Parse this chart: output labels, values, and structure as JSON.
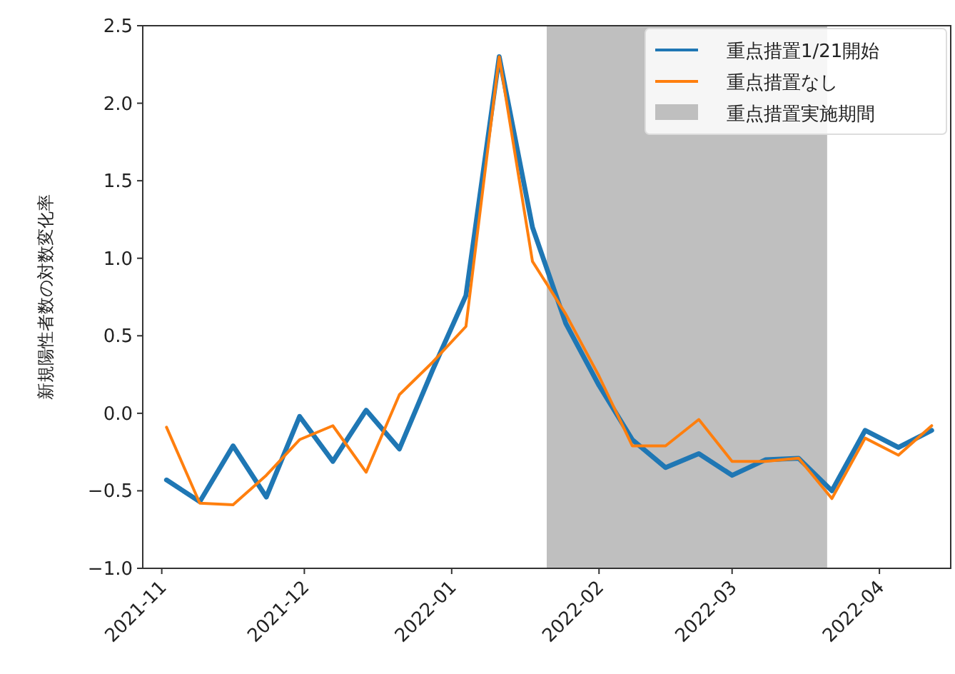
{
  "chart_data": {
    "type": "line",
    "ylabel": "新規陽性者数の対数変化率",
    "x": [
      "2021-11-02",
      "2021-11-09",
      "2021-11-16",
      "2021-11-23",
      "2021-11-30",
      "2021-12-07",
      "2021-12-14",
      "2021-12-21",
      "2021-12-28",
      "2022-01-04",
      "2022-01-11",
      "2022-01-18",
      "2022-01-25",
      "2022-02-01",
      "2022-02-08",
      "2022-02-15",
      "2022-02-22",
      "2022-03-01",
      "2022-03-08",
      "2022-03-15",
      "2022-03-22",
      "2022-03-29",
      "2022-04-05",
      "2022-04-12"
    ],
    "series": [
      {
        "name": "重点措置1/21開始",
        "color": "#1f77b4",
        "values": [
          -0.43,
          -0.57,
          -0.21,
          -0.54,
          -0.02,
          -0.31,
          0.02,
          -0.23,
          0.28,
          0.76,
          2.3,
          1.2,
          0.58,
          0.18,
          -0.17,
          -0.35,
          -0.26,
          -0.4,
          -0.3,
          -0.29,
          -0.5,
          -0.11,
          -0.22,
          -0.11
        ]
      },
      {
        "name": "重点措置なし",
        "color": "#ff7f0e",
        "values": [
          -0.09,
          -0.58,
          -0.59,
          -0.4,
          -0.17,
          -0.08,
          -0.38,
          0.12,
          0.33,
          0.56,
          2.3,
          0.98,
          0.64,
          0.24,
          -0.21,
          -0.21,
          -0.04,
          -0.31,
          -0.31,
          -0.29,
          -0.55,
          -0.16,
          -0.27,
          -0.08
        ]
      }
    ],
    "bands": [
      {
        "axis": "x",
        "from": "2022-01-21",
        "to": "2022-03-21",
        "label": "重点措置実施期間",
        "color": "#bfbfbf"
      }
    ],
    "xlim": [
      "2021-10-28",
      "2022-04-16"
    ],
    "xticks": [
      {
        "value": "2021-11-01",
        "label": "2021-11"
      },
      {
        "value": "2021-12-01",
        "label": "2021-12"
      },
      {
        "value": "2022-01-01",
        "label": "2022-01"
      },
      {
        "value": "2022-02-01",
        "label": "2022-02"
      },
      {
        "value": "2022-03-01",
        "label": "2022-03"
      },
      {
        "value": "2022-04-01",
        "label": "2022-04"
      }
    ],
    "ylim": [
      -1,
      2.5
    ],
    "yticks": [
      {
        "value": -1,
        "label": "−1.0"
      },
      {
        "value": -0.5,
        "label": "−0.5"
      },
      {
        "value": 0,
        "label": "0.0"
      },
      {
        "value": 0.5,
        "label": "0.5"
      },
      {
        "value": 1,
        "label": "1.0"
      },
      {
        "value": 1.5,
        "label": "1.5"
      },
      {
        "value": 2,
        "label": "2.0"
      },
      {
        "value": 2.5,
        "label": "2.5"
      }
    ],
    "legend": "top right",
    "grid": false,
    "marker": "none",
    "line_style": "solid"
  }
}
